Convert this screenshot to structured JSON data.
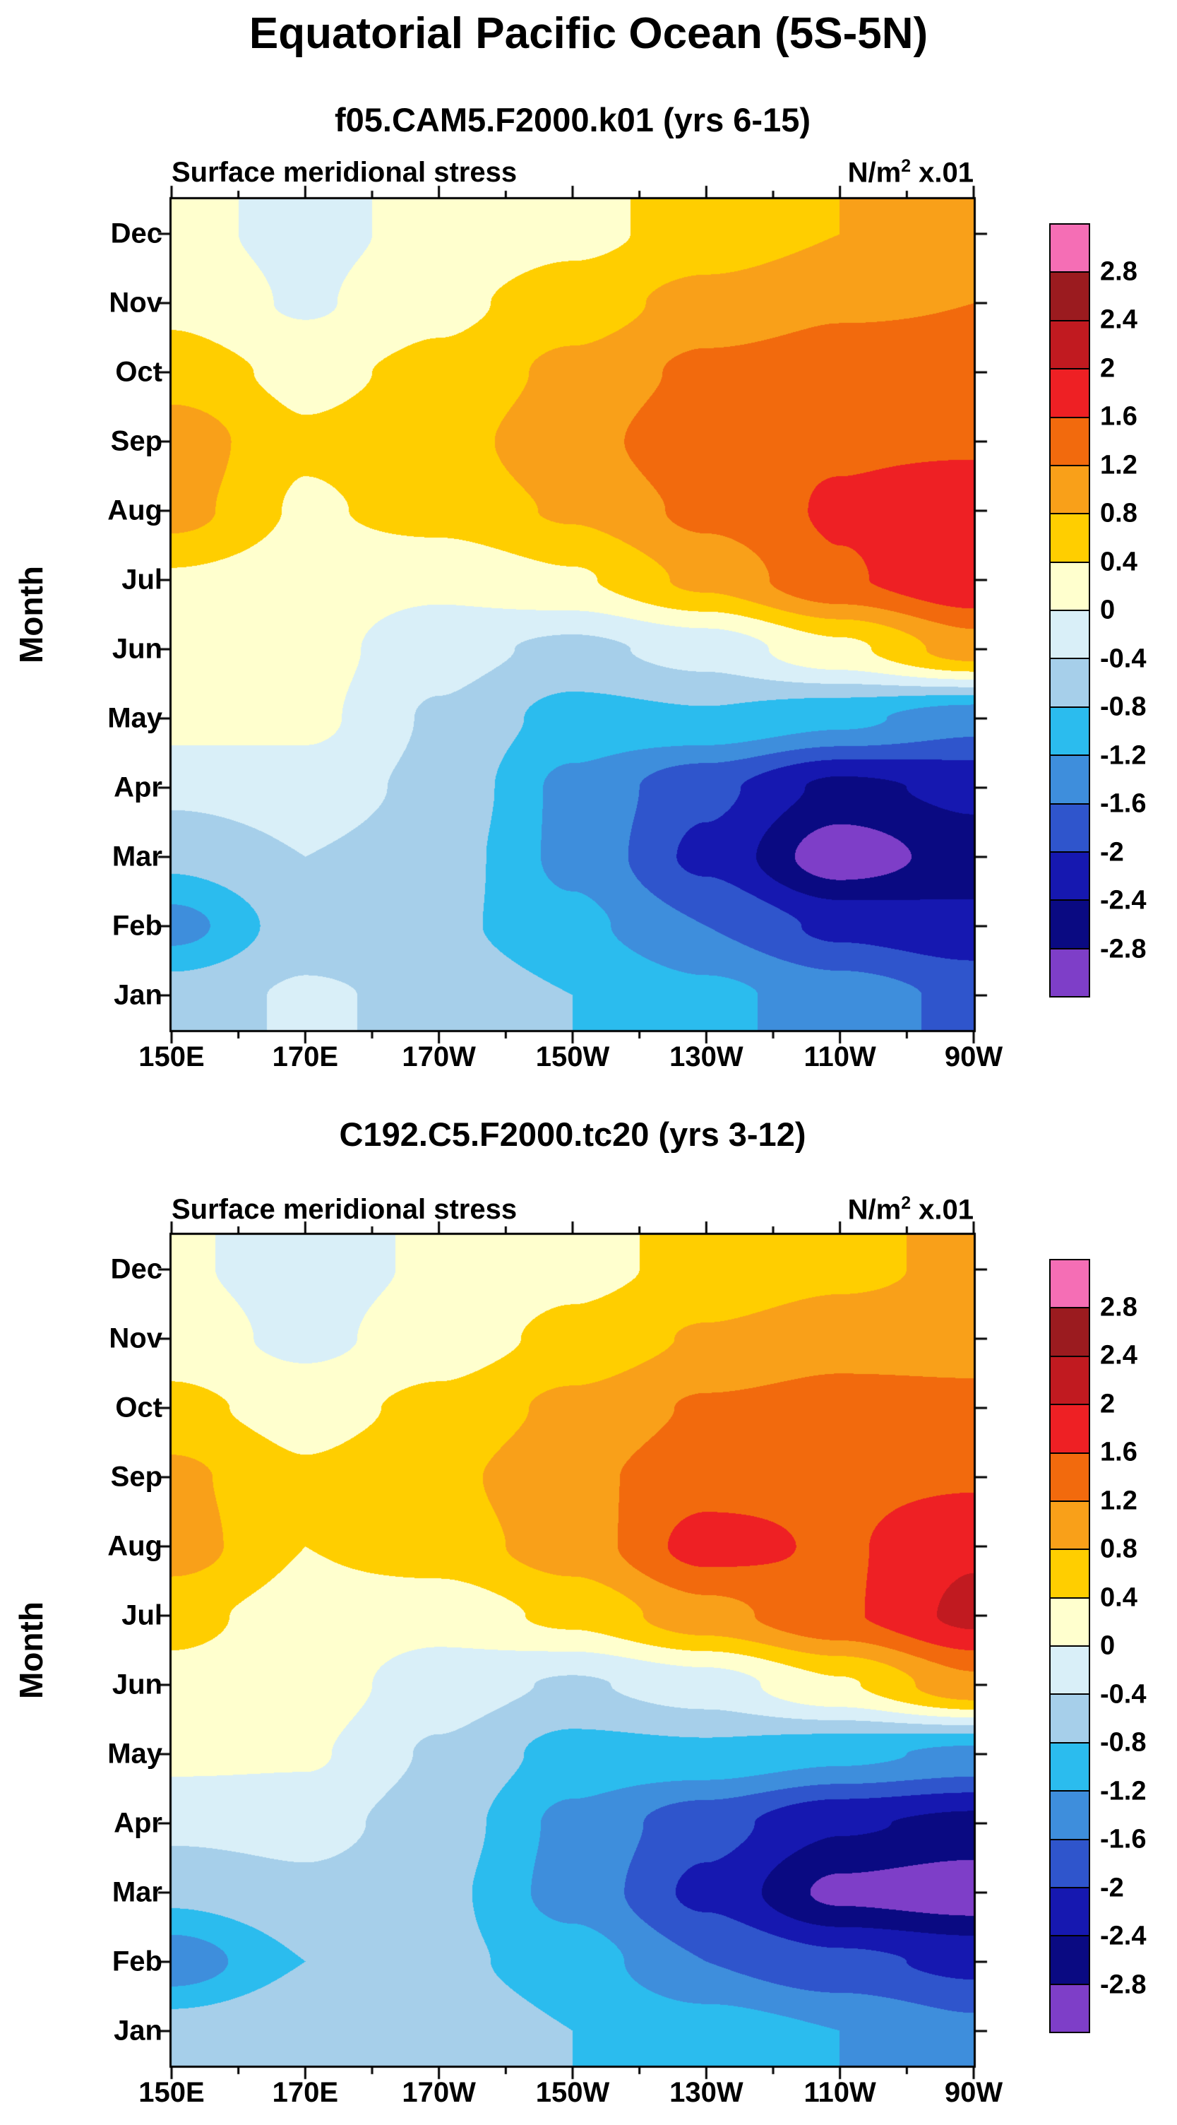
{
  "main_title": "Equatorial Pacific Ocean (5S-5N)",
  "axes": {
    "y_title": "Month",
    "x_tick_labels": [
      "150E",
      "170E",
      "170W",
      "150W",
      "130W",
      "110W",
      "90W"
    ],
    "y_tick_labels_bottom_to_top": [
      "Jan",
      "Feb",
      "Mar",
      "Apr",
      "May",
      "Jun",
      "Jul",
      "Aug",
      "Sep",
      "Oct",
      "Nov",
      "Dec"
    ]
  },
  "colorbar": {
    "labels_top_to_bottom": [
      "2.8",
      "2.4",
      "2",
      "1.6",
      "1.2",
      "0.8",
      "0.4",
      "0",
      "-0.4",
      "-0.8",
      "-1.2",
      "-1.6",
      "-2",
      "-2.4",
      "-2.8"
    ],
    "levels_ascending": [
      -2.8,
      -2.4,
      -2,
      -1.6,
      -1.2,
      -0.8,
      -0.4,
      0,
      0.4,
      0.8,
      1.2,
      1.6,
      2,
      2.4,
      2.8
    ],
    "colors_ascending": [
      "#7E3EC8",
      "#0A0A82",
      "#1618B0",
      "#2F55CC",
      "#3E8EDC",
      "#2BBCEE",
      "#A6CFEA",
      "#D9EFF8",
      "#FFFFCE",
      "#FFCE00",
      "#F9A019",
      "#F26A0D",
      "#EE2024",
      "#C11A20",
      "#9B1B1F",
      "#F56EB5"
    ]
  },
  "panels": [
    {
      "subtitle": "f05.CAM5.F2000.k01 (yrs 6-15)",
      "field_label": "Surface meridional stress",
      "units_prefix": "N/m",
      "units_sup": "2",
      "units_suffix": " x.01"
    },
    {
      "subtitle": "C192.C5.F2000.tc20 (yrs 3-12)",
      "field_label": "Surface meridional stress",
      "units_prefix": "N/m",
      "units_sup": "2",
      "units_suffix": " x.01"
    }
  ],
  "chart_data": [
    {
      "type": "heatmap",
      "title": "f05.CAM5.F2000.k01 (yrs 6-15)",
      "field": "Surface meridional stress",
      "units": "N/m2 x.01",
      "x_categories": [
        "150E",
        "170E",
        "170W",
        "150W",
        "130W",
        "110W",
        "90W"
      ],
      "y_categories_bottom_to_top": [
        "Jan",
        "Feb",
        "Mar",
        "Apr",
        "May",
        "Jun",
        "Jul",
        "Aug",
        "Sep",
        "Oct",
        "Nov",
        "Dec"
      ],
      "contour_levels": [
        -2.8,
        -2.4,
        -2,
        -1.6,
        -1.2,
        -0.8,
        -0.4,
        0,
        0.4,
        0.8,
        1.2,
        1.6,
        2,
        2.4,
        2.8
      ],
      "values_rows_jan_to_dec": [
        [
          -0.6,
          -0.35,
          -0.5,
          -0.8,
          -1.1,
          -1.4,
          -1.7
        ],
        [
          -1.35,
          -0.6,
          -0.7,
          -1.1,
          -1.6,
          -2.1,
          -2.3
        ],
        [
          -0.7,
          -0.4,
          -0.6,
          -1.3,
          -2.1,
          -3.05,
          -2.6
        ],
        [
          -0.3,
          -0.2,
          -0.5,
          -1.3,
          -1.9,
          -2.5,
          -2.3
        ],
        [
          0.15,
          0.1,
          -0.45,
          -0.95,
          -0.85,
          -1.1,
          -1.45
        ],
        [
          0.25,
          0.15,
          -0.25,
          -0.5,
          -0.25,
          0.3,
          1.0
        ],
        [
          0.35,
          0.2,
          0.1,
          0.35,
          0.9,
          1.55,
          1.95
        ],
        [
          0.95,
          0.35,
          0.55,
          0.85,
          1.3,
          1.65,
          1.85
        ],
        [
          1.05,
          0.45,
          0.65,
          1.05,
          1.5,
          1.55,
          1.55
        ],
        [
          0.6,
          0.3,
          0.5,
          0.9,
          1.3,
          1.4,
          1.35
        ],
        [
          0.3,
          -0.05,
          0.3,
          0.6,
          0.95,
          1.15,
          1.2
        ],
        [
          0.1,
          -0.1,
          0.1,
          0.3,
          0.55,
          0.8,
          1.0
        ]
      ]
    },
    {
      "type": "heatmap",
      "title": "C192.C5.F2000.tc20 (yrs 3-12)",
      "field": "Surface meridional stress",
      "units": "N/m2 x.01",
      "x_categories": [
        "150E",
        "170E",
        "170W",
        "150W",
        "130W",
        "110W",
        "90W"
      ],
      "y_categories_bottom_to_top": [
        "Jan",
        "Feb",
        "Mar",
        "Apr",
        "May",
        "Jun",
        "Jul",
        "Aug",
        "Sep",
        "Oct",
        "Nov",
        "Dec"
      ],
      "contour_levels": [
        -2.8,
        -2.4,
        -2,
        -1.6,
        -1.2,
        -0.8,
        -0.4,
        0,
        0.4,
        0.8,
        1.2,
        1.6,
        2,
        2.4,
        2.8
      ],
      "values_rows_jan_to_dec": [
        [
          -0.6,
          -0.4,
          -0.5,
          -0.8,
          -1.0,
          -1.2,
          -1.5
        ],
        [
          -1.45,
          -0.8,
          -0.7,
          -1.0,
          -1.6,
          -1.9,
          -2.1
        ],
        [
          -0.7,
          -0.5,
          -0.7,
          -1.35,
          -2.1,
          -2.9,
          -3.05
        ],
        [
          -0.3,
          -0.25,
          -0.6,
          -1.3,
          -1.85,
          -2.35,
          -2.5
        ],
        [
          0.1,
          0.05,
          -0.45,
          -0.95,
          -0.9,
          -1.1,
          -1.3
        ],
        [
          0.3,
          0.2,
          -0.2,
          -0.45,
          -0.2,
          0.35,
          1.1
        ],
        [
          0.5,
          0.25,
          0.15,
          0.5,
          1.05,
          1.55,
          2.1
        ],
        [
          1.0,
          0.4,
          0.6,
          1.0,
          1.75,
          1.55,
          1.95
        ],
        [
          0.9,
          0.45,
          0.7,
          1.1,
          1.45,
          1.5,
          1.55
        ],
        [
          0.5,
          0.25,
          0.5,
          0.9,
          1.25,
          1.35,
          1.3
        ],
        [
          0.2,
          -0.1,
          0.2,
          0.5,
          0.85,
          1.05,
          1.05
        ],
        [
          0.05,
          -0.15,
          0.05,
          0.3,
          0.5,
          0.7,
          0.9
        ]
      ]
    }
  ]
}
